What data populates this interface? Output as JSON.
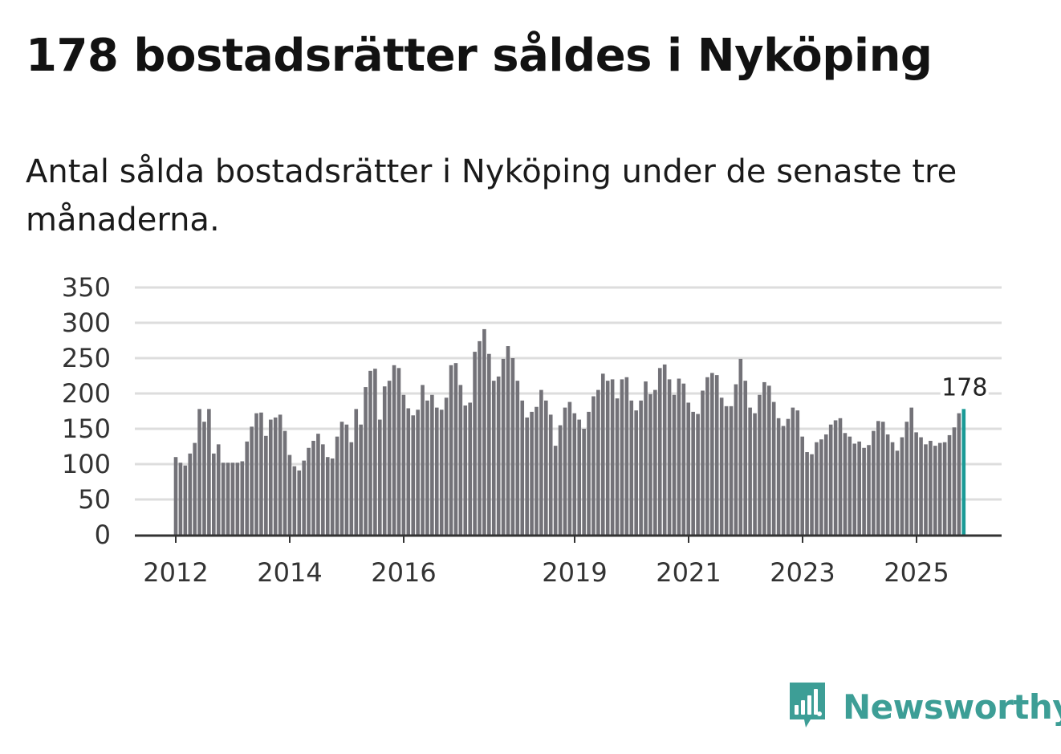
{
  "header": {
    "title": "178 bostadsrätter såldes i Nyköping",
    "subtitle": "Antal sålda bostadsrätter i Nyköping under de senaste tre månaderna."
  },
  "brand": {
    "name": "Newsworthy",
    "color": "#3d9e96"
  },
  "colors": {
    "bar": "#737278",
    "highlight": "#1a9a96",
    "grid": "#dddddd",
    "axis": "#333333"
  },
  "chart_data": {
    "type": "bar",
    "title": "Antal sålda bostadsrätter i Nyköping under de senaste tre månaderna.",
    "xlabel": "",
    "ylabel": "",
    "ylim": [
      0,
      350
    ],
    "yticks": [
      0,
      50,
      100,
      150,
      200,
      250,
      300,
      350
    ],
    "x_start": 2012.0,
    "x_step": 0.0833,
    "xticks": [
      {
        "label": "2012",
        "year": 2012
      },
      {
        "label": "2014",
        "year": 2014
      },
      {
        "label": "2016",
        "year": 2016
      },
      {
        "label": "2019",
        "year": 2019
      },
      {
        "label": "2021",
        "year": 2021
      },
      {
        "label": "2023",
        "year": 2023
      },
      {
        "label": "2025",
        "year": 2025
      }
    ],
    "highlight_label": "178",
    "values": [
      110,
      102,
      98,
      115,
      130,
      178,
      160,
      178,
      115,
      128,
      102,
      102,
      102,
      102,
      104,
      132,
      153,
      172,
      173,
      140,
      163,
      166,
      170,
      147,
      113,
      97,
      91,
      105,
      123,
      133,
      143,
      128,
      110,
      108,
      139,
      160,
      156,
      131,
      178,
      156,
      209,
      232,
      235,
      163,
      210,
      218,
      240,
      236,
      198,
      179,
      169,
      177,
      212,
      190,
      198,
      180,
      177,
      194,
      240,
      243,
      212,
      183,
      187,
      259,
      274,
      291,
      256,
      218,
      224,
      249,
      267,
      250,
      218,
      190,
      166,
      174,
      181,
      205,
      190,
      170,
      126,
      155,
      180,
      188,
      172,
      163,
      150,
      174,
      196,
      205,
      228,
      218,
      220,
      193,
      220,
      223,
      190,
      176,
      190,
      217,
      199,
      205,
      236,
      241,
      220,
      198,
      221,
      214,
      187,
      174,
      171,
      204,
      223,
      229,
      226,
      194,
      182,
      182,
      213,
      249,
      218,
      180,
      172,
      198,
      216,
      211,
      188,
      165,
      154,
      164,
      180,
      176,
      139,
      117,
      114,
      131,
      135,
      142,
      156,
      162,
      165,
      144,
      139,
      129,
      132,
      123,
      127,
      147,
      161,
      160,
      142,
      131,
      119,
      138,
      160,
      180,
      145,
      138,
      128,
      133,
      126,
      130,
      131,
      141,
      152,
      172,
      178
    ]
  }
}
